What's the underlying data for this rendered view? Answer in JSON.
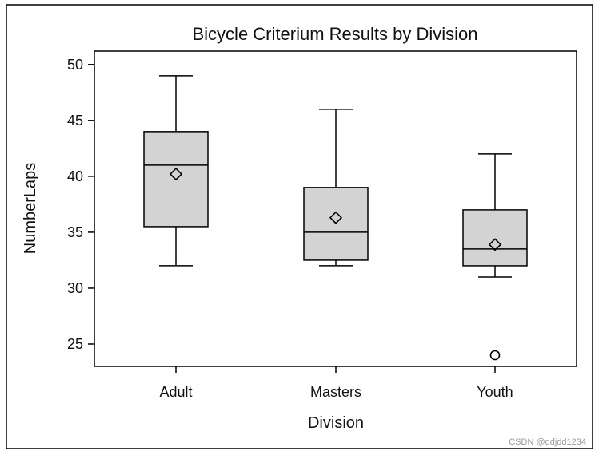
{
  "chart_data": {
    "type": "box",
    "title": "Bicycle Criterium Results by Division",
    "xlabel": "Division",
    "ylabel": "NumberLaps",
    "categories": [
      "Adult",
      "Masters",
      "Youth"
    ],
    "ylim": [
      23,
      51.2
    ],
    "yticks": [
      25,
      30,
      35,
      40,
      45,
      50
    ],
    "grid": false,
    "box_color": "#d3d3d3",
    "series": [
      {
        "category": "Adult",
        "whisker_low": 32,
        "q1": 35.5,
        "median": 41,
        "q3": 44,
        "whisker_high": 49,
        "mean": 40.2,
        "outliers": []
      },
      {
        "category": "Masters",
        "whisker_low": 32,
        "q1": 32.5,
        "median": 35,
        "q3": 39,
        "whisker_high": 46,
        "mean": 36.3,
        "outliers": []
      },
      {
        "category": "Youth",
        "whisker_low": 31,
        "q1": 32,
        "median": 33.5,
        "q3": 37,
        "whisker_high": 42,
        "mean": 33.9,
        "outliers": [
          24
        ]
      }
    ]
  },
  "watermark": "CSDN @ddjdd1234"
}
